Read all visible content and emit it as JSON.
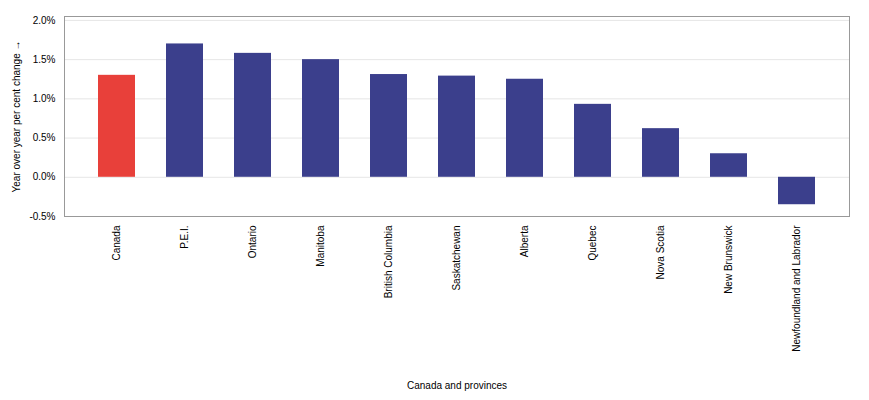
{
  "chart_data": {
    "type": "bar",
    "categories": [
      "Canada",
      "P.E.I.",
      "Ontario",
      "Manitoba",
      "British Columbia",
      "Saskatchewan",
      "Alberta",
      "Quebec",
      "Nova Scotia",
      "New Brunswick",
      "Newfoundland and Labrador"
    ],
    "values": [
      1.3,
      1.7,
      1.58,
      1.5,
      1.31,
      1.29,
      1.25,
      0.93,
      0.62,
      0.3,
      -0.35
    ],
    "colors": [
      "#e8403a",
      "#3b3f8c",
      "#3b3f8c",
      "#3b3f8c",
      "#3b3f8c",
      "#3b3f8c",
      "#3b3f8c",
      "#3b3f8c",
      "#3b3f8c",
      "#3b3f8c",
      "#3b3f8c"
    ],
    "xlabel": "Canada and provinces",
    "ylabel": "Year over year per cent change",
    "ylim": [
      -0.5,
      2.05
    ],
    "yticks": [
      {
        "value": -0.5,
        "label": "-0.5%"
      },
      {
        "value": 0.0,
        "label": "0.0%"
      },
      {
        "value": 0.5,
        "label": "0.5%"
      },
      {
        "value": 1.0,
        "label": "1.0%"
      },
      {
        "value": 1.5,
        "label": "1.5%"
      },
      {
        "value": 2.0,
        "label": "2.0%"
      }
    ],
    "grid": true
  }
}
